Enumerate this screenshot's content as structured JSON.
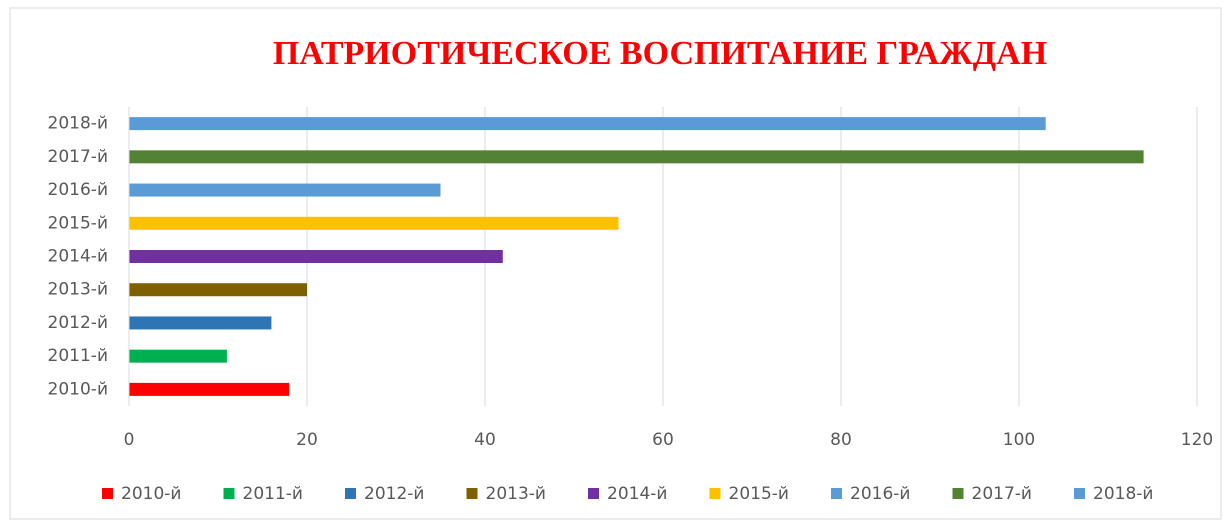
{
  "chart_data": {
    "type": "bar",
    "orientation": "horizontal",
    "title": "ПАТРИОТИЧЕСКОЕ ВОСПИТАНИЕ ГРАЖДАН",
    "categories": [
      "2010-й",
      "2011-й",
      "2012-й",
      "2013-й",
      "2014-й",
      "2015-й",
      "2016-й",
      "2017-й",
      "2018-й"
    ],
    "values": [
      18,
      11,
      16,
      20,
      42,
      55,
      35,
      114,
      103
    ],
    "colors": [
      "#ff0000",
      "#00b050",
      "#2e75b6",
      "#7f6000",
      "#7030a0",
      "#ffc000",
      "#5b9bd5",
      "#548235",
      "#5b9bd5"
    ],
    "xlim": [
      0,
      120
    ],
    "xticks": [
      0,
      20,
      40,
      60,
      80,
      100,
      120
    ],
    "grid": true,
    "legend": "bottom"
  }
}
